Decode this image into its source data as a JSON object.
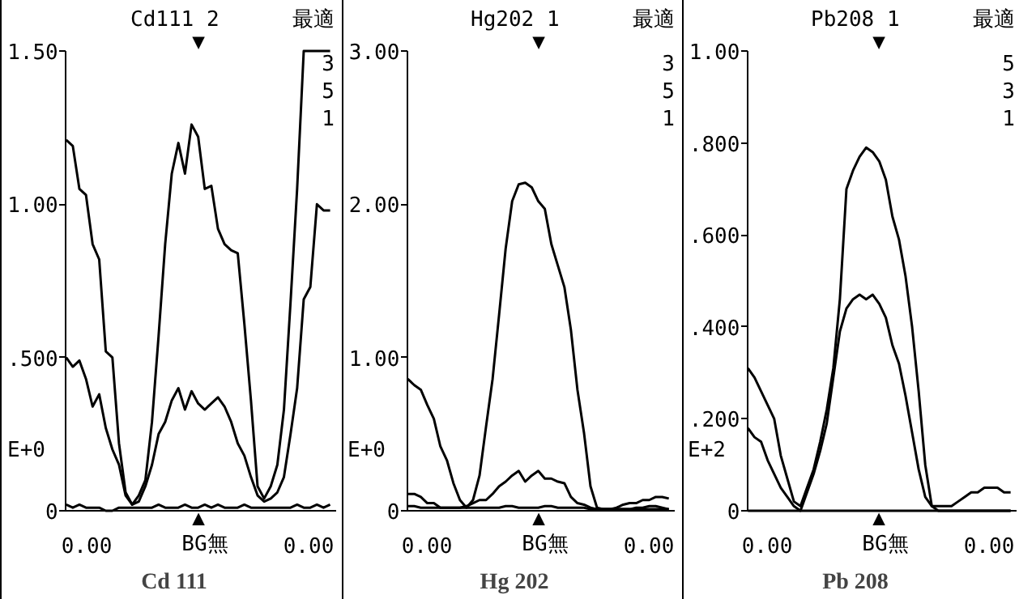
{
  "chart_data": [
    {
      "type": "line",
      "title": "Cd 111",
      "categories": [
        null,
        null,
        null,
        null,
        null,
        null,
        null,
        null,
        null,
        null,
        null,
        null,
        null,
        null,
        null,
        null,
        null,
        null,
        null,
        null,
        null,
        null,
        null,
        null,
        null,
        null,
        null,
        null,
        null,
        null,
        null,
        null,
        null,
        null,
        null,
        null,
        null,
        null,
        null,
        null,
        null
      ],
      "annotations": [
        "Cd111  2",
        "最適",
        "3",
        "5",
        "1",
        "E+0",
        "0.00",
        "BG無",
        "0.00",
        "▼",
        "▲"
      ],
      "ylim": [
        0,
        1.5
      ],
      "yticks": [
        {
          "value": 0,
          "label": "0"
        },
        {
          "value": 0.5,
          "label": ".500"
        },
        {
          "value": 1.0,
          "label": "1.00"
        },
        {
          "value": 1.5,
          "label": "1.50"
        }
      ],
      "grid": false,
      "series": [
        {
          "color": "#000000",
          "values": [
            1.21,
            1.19,
            1.05,
            1.03,
            0.87,
            0.82,
            0.52,
            0.5,
            0.22,
            0.06,
            0.02,
            0.05,
            0.1,
            0.29,
            0.57,
            0.87,
            1.1,
            1.2,
            1.1,
            1.26,
            1.22,
            1.05,
            1.06,
            0.92,
            0.87,
            0.85,
            0.84,
            0.61,
            0.36,
            0.08,
            0.04,
            0.08,
            0.15,
            0.33,
            0.68,
            1.05,
            1.5,
            1.5,
            1.5,
            1.5,
            1.5
          ]
        },
        {
          "color": "#000000",
          "values": [
            0.5,
            0.47,
            0.49,
            0.43,
            0.34,
            0.38,
            0.27,
            0.2,
            0.15,
            0.05,
            0.02,
            0.03,
            0.08,
            0.15,
            0.25,
            0.29,
            0.36,
            0.4,
            0.33,
            0.39,
            0.35,
            0.33,
            0.35,
            0.37,
            0.34,
            0.29,
            0.22,
            0.18,
            0.11,
            0.05,
            0.03,
            0.04,
            0.06,
            0.11,
            0.25,
            0.4,
            0.69,
            0.73,
            1.0,
            0.98,
            0.98
          ]
        },
        {
          "color": "#000000",
          "values": [
            0.02,
            0.01,
            0.02,
            0.01,
            0.01,
            0.01,
            0.0,
            0.0,
            0.01,
            0.01,
            0.01,
            0.01,
            0.01,
            0.01,
            0.02,
            0.01,
            0.01,
            0.01,
            0.02,
            0.01,
            0.01,
            0.02,
            0.01,
            0.02,
            0.01,
            0.01,
            0.01,
            0.02,
            0.01,
            0.01,
            0.01,
            0.01,
            0.01,
            0.01,
            0.01,
            0.02,
            0.01,
            0.01,
            0.02,
            0.01,
            0.02
          ]
        }
      ]
    },
    {
      "type": "line",
      "title": "Hg 202",
      "categories": [
        null,
        null,
        null,
        null,
        null,
        null,
        null,
        null,
        null,
        null,
        null,
        null,
        null,
        null,
        null,
        null,
        null,
        null,
        null,
        null,
        null,
        null,
        null,
        null,
        null,
        null,
        null,
        null,
        null,
        null,
        null,
        null,
        null,
        null,
        null,
        null,
        null,
        null,
        null,
        null,
        null
      ],
      "annotations": [
        "Hg202  1",
        "最適",
        "3",
        "5",
        "1",
        "E+0",
        "0.00",
        "BG無",
        "0.00",
        "▼",
        "▲"
      ],
      "ylim": [
        0,
        3.0
      ],
      "yticks": [
        {
          "value": 0,
          "label": "0"
        },
        {
          "value": 1.0,
          "label": "1.00"
        },
        {
          "value": 2.0,
          "label": "2.00"
        },
        {
          "value": 3.0,
          "label": "3.00"
        }
      ],
      "grid": false,
      "series": [
        {
          "color": "#000000",
          "values": [
            0.86,
            0.82,
            0.79,
            0.69,
            0.6,
            0.42,
            0.33,
            0.18,
            0.07,
            0.02,
            0.07,
            0.23,
            0.55,
            0.86,
            1.28,
            1.71,
            2.02,
            2.13,
            2.14,
            2.11,
            2.02,
            1.97,
            1.74,
            1.6,
            1.46,
            1.18,
            0.79,
            0.51,
            0.16,
            0.02,
            0.01,
            0.01,
            0.01,
            0.01,
            0.01,
            0.01,
            0.01,
            0.01,
            0.01,
            0.01,
            0.01
          ]
        },
        {
          "color": "#000000",
          "values": [
            0.11,
            0.11,
            0.09,
            0.05,
            0.05,
            0.02,
            0.02,
            0.02,
            0.02,
            0.03,
            0.05,
            0.07,
            0.07,
            0.11,
            0.16,
            0.19,
            0.23,
            0.26,
            0.19,
            0.23,
            0.26,
            0.21,
            0.21,
            0.19,
            0.18,
            0.09,
            0.05,
            0.04,
            0.02,
            0.01,
            0.01,
            0.01,
            0.02,
            0.04,
            0.05,
            0.05,
            0.07,
            0.07,
            0.09,
            0.09,
            0.08
          ]
        },
        {
          "color": "#000000",
          "values": [
            0.03,
            0.03,
            0.02,
            0.02,
            0.02,
            0.02,
            0.02,
            0.02,
            0.02,
            0.02,
            0.02,
            0.02,
            0.02,
            0.02,
            0.02,
            0.03,
            0.03,
            0.02,
            0.02,
            0.02,
            0.02,
            0.03,
            0.03,
            0.02,
            0.02,
            0.02,
            0.02,
            0.02,
            0.01,
            0.01,
            0.01,
            0.01,
            0.01,
            0.01,
            0.01,
            0.02,
            0.02,
            0.03,
            0.03,
            0.02,
            0.01
          ]
        }
      ]
    },
    {
      "type": "line",
      "title": "Pb 208",
      "categories": [
        null,
        null,
        null,
        null,
        null,
        null,
        null,
        null,
        null,
        null,
        null,
        null,
        null,
        null,
        null,
        null,
        null,
        null,
        null,
        null,
        null,
        null,
        null,
        null,
        null,
        null,
        null,
        null,
        null,
        null,
        null,
        null,
        null,
        null,
        null,
        null,
        null,
        null,
        null,
        null,
        null
      ],
      "annotations": [
        "Pb208  1",
        "最適",
        "5",
        "3",
        "1",
        "E+2",
        "0.00",
        "BG無",
        "0.00",
        "▼",
        "▲"
      ],
      "ylim": [
        0,
        1.0
      ],
      "yticks": [
        {
          "value": 0,
          "label": "0"
        },
        {
          "value": 0.2,
          "label": ".200"
        },
        {
          "value": 0.4,
          "label": ".400"
        },
        {
          "value": 0.6,
          "label": ".600"
        },
        {
          "value": 0.8,
          "label": ".800"
        },
        {
          "value": 1.0,
          "label": "1.00"
        }
      ],
      "grid": false,
      "series": [
        {
          "color": "#000000",
          "values": [
            0.31,
            0.29,
            0.26,
            0.23,
            0.2,
            0.12,
            0.07,
            0.02,
            0.01,
            0.05,
            0.09,
            0.15,
            0.22,
            0.31,
            0.46,
            0.7,
            0.74,
            0.77,
            0.79,
            0.78,
            0.76,
            0.72,
            0.64,
            0.59,
            0.51,
            0.4,
            0.26,
            0.1,
            0.01,
            0.0,
            0.0,
            0.0,
            0.0,
            0.0,
            0.0,
            0.0,
            0.0,
            0.0,
            0.0,
            0.0,
            0.0
          ]
        },
        {
          "color": "#000000",
          "values": [
            0.18,
            0.16,
            0.15,
            0.11,
            0.08,
            0.05,
            0.03,
            0.01,
            0.0,
            0.04,
            0.08,
            0.13,
            0.19,
            0.29,
            0.39,
            0.44,
            0.46,
            0.47,
            0.46,
            0.47,
            0.45,
            0.42,
            0.36,
            0.32,
            0.25,
            0.17,
            0.09,
            0.03,
            0.01,
            0.01,
            0.01,
            0.01,
            0.02,
            0.03,
            0.04,
            0.04,
            0.05,
            0.05,
            0.05,
            0.04,
            0.04
          ]
        },
        {
          "color": "#000000",
          "values": [
            0,
            0,
            0,
            0,
            0,
            0,
            0,
            0,
            0,
            0,
            0,
            0,
            0,
            0,
            0,
            0,
            0,
            0,
            0,
            0,
            0,
            0,
            0,
            0,
            0,
            0,
            0,
            0,
            0,
            0,
            0,
            0,
            0,
            0,
            0,
            0,
            0,
            0,
            0,
            0,
            0
          ]
        }
      ]
    }
  ]
}
